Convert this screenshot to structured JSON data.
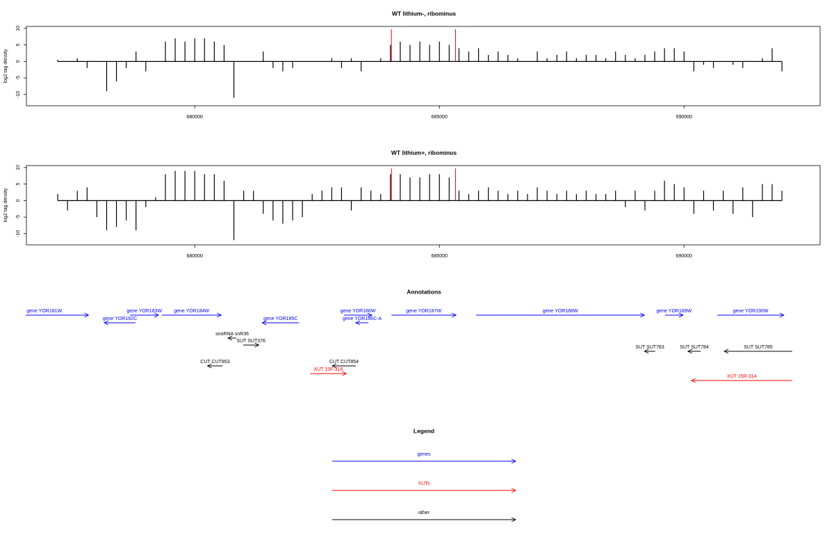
{
  "chart_data": [
    {
      "type": "bar",
      "title": "WT lithium-, ribominus",
      "y_label": "log2 tag density",
      "color": "#000000",
      "x": [
        677200,
        677400,
        677600,
        677800,
        678000,
        678200,
        678400,
        678600,
        678800,
        679000,
        679200,
        679400,
        679600,
        679800,
        680000,
        680200,
        680400,
        680600,
        680800,
        681000,
        681200,
        681400,
        681600,
        681800,
        682000,
        682200,
        682400,
        682600,
        682800,
        683000,
        683200,
        683400,
        683600,
        683800,
        684000,
        684200,
        684400,
        684600,
        684800,
        685000,
        685200,
        685400,
        685600,
        685800,
        686000,
        686200,
        686400,
        686600,
        686800,
        687000,
        687200,
        687400,
        687600,
        687800,
        688000,
        688200,
        688400,
        688600,
        688800,
        689000,
        689200,
        689400,
        689600,
        689800,
        690000,
        690200,
        690400,
        690600,
        690800,
        691000,
        691200,
        691400,
        691600,
        691800,
        692000
      ],
      "values": [
        0.5,
        0,
        1,
        -2,
        0,
        -9,
        -6,
        -2,
        3,
        -3,
        0,
        6,
        7,
        6,
        7,
        7,
        6,
        5,
        -11,
        0,
        0,
        3,
        -2,
        -3,
        -2,
        0,
        0,
        0,
        1,
        -2,
        1,
        -3,
        0,
        1,
        5,
        6,
        5,
        6,
        5,
        6,
        5,
        4,
        3,
        4,
        2,
        3,
        2,
        1,
        0,
        3,
        1,
        2,
        3,
        1,
        2,
        2,
        1,
        3,
        2,
        1,
        2,
        3,
        4,
        4,
        3,
        -3,
        -1,
        -2,
        0,
        -1,
        -2,
        0,
        1,
        4,
        -3
      ],
      "xlim": [
        676560,
        692780
      ],
      "ylim": [
        -13.4,
        10.6
      ],
      "xticks": [
        680000,
        685000,
        690000
      ],
      "yticks": [
        10,
        5,
        0,
        -5,
        -10
      ],
      "markers": [
        684020,
        685330
      ],
      "marker_color": "#ff0000"
    },
    {
      "type": "bar",
      "title": "WT lithium+, ribominus",
      "y_label": "log2 tag density",
      "color": "#000000",
      "x": [
        677200,
        677400,
        677600,
        677800,
        678000,
        678200,
        678400,
        678600,
        678800,
        679000,
        679200,
        679400,
        679600,
        679800,
        680000,
        680200,
        680400,
        680600,
        680800,
        681000,
        681200,
        681400,
        681600,
        681800,
        682000,
        682200,
        682400,
        682600,
        682800,
        683000,
        683200,
        683400,
        683600,
        683800,
        684000,
        684200,
        684400,
        684600,
        684800,
        685000,
        685200,
        685400,
        685600,
        685800,
        686000,
        686200,
        686400,
        686600,
        686800,
        687000,
        687200,
        687400,
        687600,
        687800,
        688000,
        688200,
        688400,
        688600,
        688800,
        689000,
        689200,
        689400,
        689600,
        689800,
        690000,
        690200,
        690400,
        690600,
        690800,
        691000,
        691200,
        691400,
        691600,
        691800,
        692000
      ],
      "values": [
        2,
        -3,
        3,
        4,
        -5,
        -9,
        -8,
        -6,
        -9,
        -2,
        1,
        8,
        9,
        9,
        9,
        8,
        8,
        6,
        -12,
        3,
        3,
        -4,
        -6,
        -7,
        -6,
        -5,
        2,
        3,
        4,
        4,
        -3,
        4,
        3,
        2,
        8,
        8,
        7,
        7,
        8,
        8,
        7,
        3,
        2,
        3,
        4,
        3,
        2,
        3,
        2,
        4,
        3,
        2,
        3,
        2,
        3,
        2,
        2,
        3,
        -2,
        3,
        -3,
        3,
        6,
        5,
        4,
        -4,
        3,
        -3,
        3,
        -4,
        4,
        -5,
        5,
        5,
        3
      ],
      "xlim": [
        676560,
        692780
      ],
      "ylim": [
        -13.4,
        10.6
      ],
      "xticks": [
        680000,
        685000,
        690000
      ],
      "yticks": [
        10,
        5,
        0,
        -5,
        -10
      ],
      "markers": [
        684020,
        685330
      ],
      "marker_color": "#ff0000"
    }
  ],
  "annotations": {
    "title": "Annotations",
    "features": [
      {
        "label": "gene YOR181W",
        "start": 676020,
        "end": 677830,
        "strand": "+",
        "color": "#0000ff"
      },
      {
        "label": "gene YOR182C",
        "start": 678150,
        "end": 678790,
        "strand": "-",
        "color": "#0000ff"
      },
      {
        "label": "gene YOR183W",
        "start": 678680,
        "end": 679260,
        "strand": "+",
        "color": "#0000ff"
      },
      {
        "label": "gene YOR184W",
        "start": 679330,
        "end": 680540,
        "strand": "+",
        "color": "#0000ff"
      },
      {
        "label": "gene YOR185C",
        "start": 681380,
        "end": 682130,
        "strand": "-",
        "color": "#0000ff"
      },
      {
        "label": "gene YOR186W",
        "start": 683050,
        "end": 683620,
        "strand": "+",
        "color": "#0000ff"
      },
      {
        "label": "gene YOR186C-A",
        "start": 683290,
        "end": 683550,
        "strand": "-",
        "color": "#0000ff"
      },
      {
        "label": "gene YOR187W",
        "start": 684020,
        "end": 685340,
        "strand": "+",
        "color": "#0000ff"
      },
      {
        "label": "gene YOR188W",
        "start": 685750,
        "end": 689190,
        "strand": "+",
        "color": "#0000ff"
      },
      {
        "label": "gene YOR189W",
        "start": 689610,
        "end": 689980,
        "strand": "+",
        "color": "#0000ff"
      },
      {
        "label": "gene YOR190W",
        "start": 690680,
        "end": 692040,
        "strand": "+",
        "color": "#0000ff"
      },
      {
        "label": "snoRNA snR36",
        "start": 680680,
        "end": 680850,
        "strand": "-",
        "color": "#000000"
      },
      {
        "label": "SUT SUT376",
        "start": 680990,
        "end": 681310,
        "strand": "+",
        "color": "#000000"
      },
      {
        "label": "SUT SUT783",
        "start": 689190,
        "end": 689410,
        "strand": "-",
        "color": "#000000"
      },
      {
        "label": "SUT SUT784",
        "start": 690080,
        "end": 690340,
        "strand": "-",
        "color": "#000000"
      },
      {
        "label": "SUT SUT785",
        "start": 690820,
        "end": 692210,
        "strand": "-",
        "color": "#000000"
      },
      {
        "label": "CUT CUT853",
        "start": 680260,
        "end": 680570,
        "strand": "-",
        "color": "#000000"
      },
      {
        "label": "CUT CUT854",
        "start": 682810,
        "end": 683290,
        "strand": "-",
        "color": "#000000"
      },
      {
        "label": "XUT 15F-318",
        "start": 682360,
        "end": 683100,
        "strand": "+",
        "color": "#ff0000"
      },
      {
        "label": "XUT 15R-314",
        "start": 690150,
        "end": 692210,
        "strand": "-",
        "color": "#ff0000"
      }
    ]
  },
  "legend": {
    "title": "Legend",
    "entries": [
      {
        "label": "genes",
        "color": "#0000ff"
      },
      {
        "label": "XUTs",
        "color": "#ff0000"
      },
      {
        "label": "other",
        "color": "#000000"
      }
    ]
  }
}
